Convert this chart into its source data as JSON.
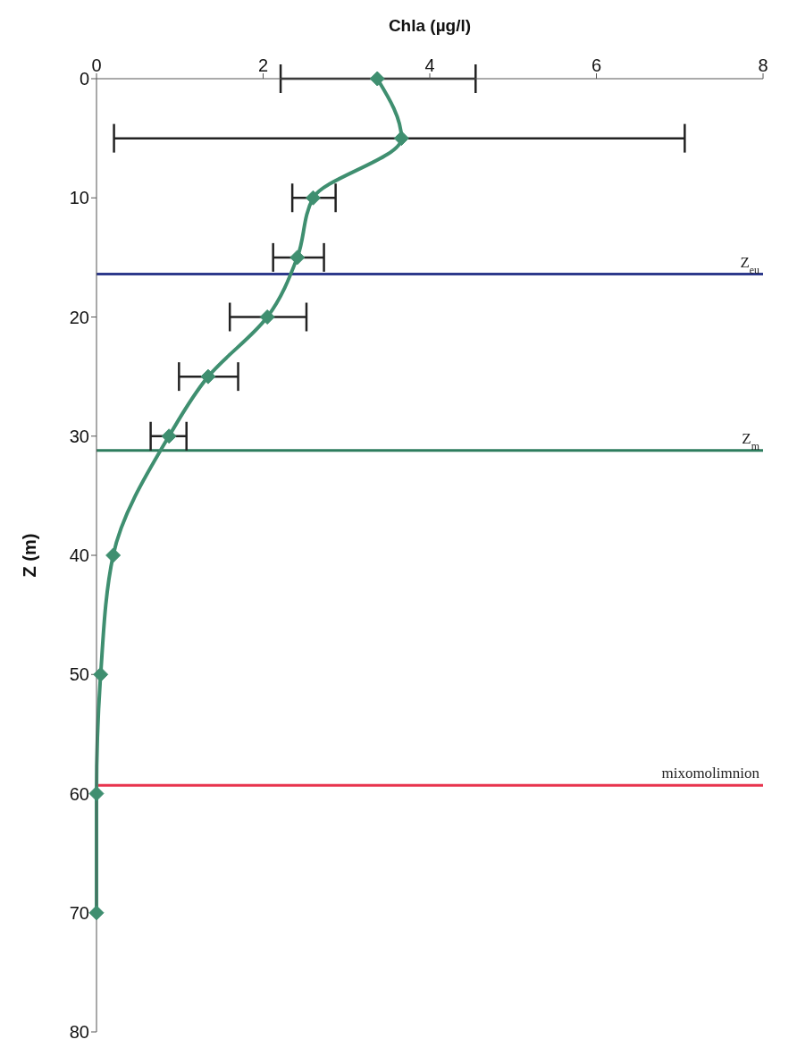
{
  "chart_data": {
    "type": "line",
    "xlabel": "Chla (µg/l)",
    "ylabel": "Z (m)",
    "x": [
      3.37,
      3.66,
      2.6,
      2.41,
      2.05,
      1.34,
      0.87,
      0.2,
      0.05,
      0,
      0
    ],
    "series": [
      {
        "color": "#3f8f70",
        "values": [
          0,
          5,
          10,
          15,
          20,
          25,
          30,
          40,
          50,
          60,
          70
        ],
        "xerrors": [
          [
            2.21,
            4.55
          ],
          [
            0.21,
            7.06
          ],
          [
            2.35,
            2.87
          ],
          [
            2.12,
            2.73
          ],
          [
            1.6,
            2.52
          ],
          [
            0.99,
            1.7
          ],
          [
            0.65,
            1.08
          ],
          null,
          null,
          null,
          null
        ]
      }
    ],
    "xlim": [
      0,
      8
    ],
    "xticks": [
      0,
      2,
      4,
      6,
      8
    ],
    "ylim": [
      80,
      0
    ],
    "yticks": [
      0,
      10,
      20,
      30,
      40,
      50,
      60,
      70,
      80
    ],
    "marker": "diamond",
    "grid": false,
    "legend": false,
    "ref_lines": [
      {
        "axis": "y",
        "value": 16.4,
        "label": "Z$_{eu}$",
        "color": "#2e3a8c"
      },
      {
        "axis": "y",
        "value": 31.2,
        "label": "Z$_{m}$",
        "color": "#2e7d5e"
      },
      {
        "axis": "y",
        "value": 59.3,
        "label": "mixomolimnion",
        "color": "#e8334d"
      }
    ]
  }
}
